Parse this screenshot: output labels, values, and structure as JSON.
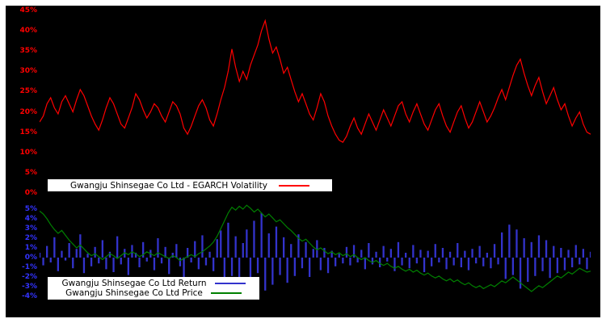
{
  "figure": {
    "background": "#000000",
    "frame": "#ffffff"
  },
  "legend_volatility": {
    "label": "Gwangju Shinsegae Co Ltd - EGARCH Volatility"
  },
  "legend_bottom": {
    "return_label": "Gwangju Shinsegae Co Ltd Return",
    "price_label": "Gwangju Shinsegae Co Ltd Price"
  },
  "chart_data": [
    {
      "type": "line",
      "title": "",
      "xlabel": "",
      "ylabel": "",
      "ylim": [
        0,
        45
      ],
      "yticks": [
        0,
        5,
        10,
        15,
        20,
        25,
        30,
        35,
        40,
        45
      ],
      "ytick_suffix": "%",
      "axis_color": "#ff0000",
      "background": "#000000",
      "grid": false,
      "legend_position": "bottom-left",
      "series": [
        {
          "name": "Gwangju Shinsegae Co Ltd - EGARCH Volatility",
          "type": "line",
          "color": "#ff0000",
          "values": [
            17.5,
            19,
            22,
            23.5,
            21,
            19.5,
            22.5,
            24,
            22,
            20,
            23,
            25.5,
            24,
            21.5,
            19,
            17,
            15.5,
            18,
            21,
            23.5,
            22,
            19.5,
            17,
            16,
            18.5,
            21,
            24.5,
            23,
            20.5,
            18.5,
            20,
            22,
            21,
            19,
            17.5,
            20,
            22.5,
            21.5,
            19.5,
            16,
            14.5,
            16.5,
            19,
            21.5,
            23,
            21,
            18,
            16.5,
            19.5,
            23,
            26,
            30,
            35.5,
            31,
            27.5,
            30,
            28,
            31.5,
            34,
            36.5,
            40,
            42.5,
            38,
            34.5,
            36,
            33,
            29.5,
            31,
            28,
            25,
            22.5,
            24.5,
            22,
            19.5,
            18,
            21,
            24.5,
            22.5,
            19,
            16.5,
            14.5,
            13,
            12.5,
            14,
            16.5,
            18.5,
            16,
            14.5,
            17,
            19.5,
            17.5,
            15.5,
            18,
            20.5,
            18.5,
            16.5,
            19,
            21.5,
            22.5,
            19.5,
            17.5,
            20,
            22,
            19.5,
            17,
            15.5,
            18,
            20.5,
            22,
            19,
            16.5,
            15,
            17.5,
            20,
            21.5,
            18.5,
            16,
            17.5,
            20,
            22.5,
            20,
            17.5,
            19,
            21,
            23.5,
            25.5,
            23,
            26,
            29,
            31.5,
            33,
            29.5,
            26.5,
            24,
            26.5,
            28.5,
            25,
            22,
            24,
            26,
            23,
            20.5,
            22,
            19,
            16.5,
            18.5,
            20,
            17,
            15,
            14.5
          ]
        }
      ]
    },
    {
      "type": "bar",
      "title": "",
      "xlabel": "",
      "ylabel": "",
      "ylim": [
        -4.5,
        5.5
      ],
      "yticks": [
        -4,
        -3,
        -2,
        -1,
        0,
        1,
        2,
        3,
        4,
        5
      ],
      "ytick_suffix": "%",
      "axis_color": "#3333ff",
      "background": "#000000",
      "grid": false,
      "legend_position": "bottom-left",
      "series": [
        {
          "name": "Gwangju Shinsegae Co Ltd Return",
          "type": "bar",
          "color": "#3333cc",
          "values": [
            0.5,
            -0.8,
            1.2,
            -0.5,
            2.1,
            -1.4,
            0.7,
            -0.3,
            1.5,
            -1.1,
            0.9,
            2.4,
            -1.6,
            0.4,
            -0.9,
            1.1,
            -0.6,
            1.8,
            -1.2,
            0.6,
            -1.5,
            2.2,
            -0.7,
            0.9,
            -1.8,
            1.3,
            0.5,
            -1.0,
            1.6,
            -0.4,
            0.8,
            -1.3,
            2.0,
            -0.6,
            1.1,
            -1.7,
            0.5,
            1.4,
            -0.9,
            -2.1,
            1.0,
            -0.5,
            1.7,
            -1.2,
            2.3,
            -0.8,
            0.6,
            -1.4,
            1.9,
            2.8,
            -2.5,
            3.6,
            -1.9,
            2.2,
            -3.1,
            1.5,
            2.9,
            -2.2,
            3.8,
            -1.6,
            4.6,
            -3.4,
            2.5,
            -2.8,
            3.2,
            -1.8,
            2.1,
            -2.6,
            1.4,
            -1.9,
            2.4,
            -1.1,
            1.6,
            -2.0,
            0.9,
            1.8,
            -1.3,
            1.0,
            -1.6,
            0.7,
            -0.9,
            0.4,
            -0.6,
            1.1,
            -0.8,
            1.3,
            -0.5,
            0.8,
            -1.2,
            1.5,
            -0.7,
            0.6,
            -1.0,
            1.2,
            -0.4,
            0.9,
            -1.4,
            1.6,
            -0.8,
            0.5,
            -1.1,
            1.3,
            -0.6,
            0.8,
            -1.5,
            0.7,
            -0.9,
            1.4,
            -0.5,
            1.0,
            -1.2,
            0.6,
            -0.8,
            1.5,
            -1.0,
            0.7,
            -1.3,
            0.9,
            -0.6,
            1.2,
            -0.9,
            0.5,
            -1.1,
            1.4,
            -0.7,
            2.6,
            -2.2,
            3.4,
            -1.8,
            2.9,
            -3.2,
            2.0,
            -2.5,
            1.6,
            -1.9,
            2.3,
            -1.4,
            1.8,
            -2.1,
            1.2,
            -1.6,
            1.0,
            -1.3,
            0.8,
            -1.0,
            1.3,
            -0.7,
            0.9,
            -1.2,
            0.6
          ]
        },
        {
          "name": "Gwangju Shinsegae Co Ltd Price",
          "type": "line",
          "color": "#008000",
          "values": [
            4.8,
            4.5,
            4.0,
            3.4,
            2.9,
            2.5,
            2.8,
            2.3,
            1.8,
            1.4,
            1.0,
            1.3,
            0.9,
            0.5,
            0.2,
            0.4,
            0.1,
            -0.2,
            0.1,
            0.4,
            0.2,
            -0.1,
            0.2,
            0.5,
            0.3,
            0.6,
            0.4,
            0.1,
            0.3,
            0.6,
            0.4,
            0.2,
            0.5,
            0.3,
            0.1,
            -0.1,
            0.2,
            0.0,
            -0.3,
            -0.1,
            0.1,
            0.3,
            0.1,
            0.4,
            0.6,
            0.9,
            1.2,
            1.6,
            2.2,
            3.0,
            3.8,
            4.6,
            5.2,
            4.9,
            5.3,
            5.0,
            5.4,
            5.1,
            4.7,
            5.0,
            4.6,
            4.2,
            4.5,
            4.1,
            3.7,
            3.9,
            3.5,
            3.1,
            2.8,
            2.4,
            2.0,
            1.7,
            1.9,
            1.5,
            1.1,
            0.8,
            1.0,
            0.7,
            0.4,
            0.6,
            0.3,
            0.5,
            0.2,
            0.4,
            0.1,
            0.3,
            0.0,
            -0.2,
            0.0,
            -0.3,
            -0.5,
            -0.3,
            -0.6,
            -0.8,
            -0.6,
            -0.9,
            -1.1,
            -0.9,
            -1.2,
            -1.4,
            -1.2,
            -1.5,
            -1.3,
            -1.6,
            -1.8,
            -1.6,
            -1.9,
            -2.1,
            -1.9,
            -2.2,
            -2.4,
            -2.2,
            -2.5,
            -2.3,
            -2.6,
            -2.8,
            -2.6,
            -2.9,
            -3.1,
            -2.9,
            -3.2,
            -3.0,
            -2.8,
            -3.0,
            -2.7,
            -2.4,
            -2.6,
            -2.3,
            -2.0,
            -2.3,
            -2.6,
            -2.9,
            -3.2,
            -3.5,
            -3.2,
            -2.9,
            -3.1,
            -2.8,
            -2.5,
            -2.2,
            -1.9,
            -2.1,
            -1.8,
            -1.5,
            -1.7,
            -1.4,
            -1.1,
            -1.3,
            -1.5,
            -1.4
          ]
        }
      ]
    }
  ]
}
